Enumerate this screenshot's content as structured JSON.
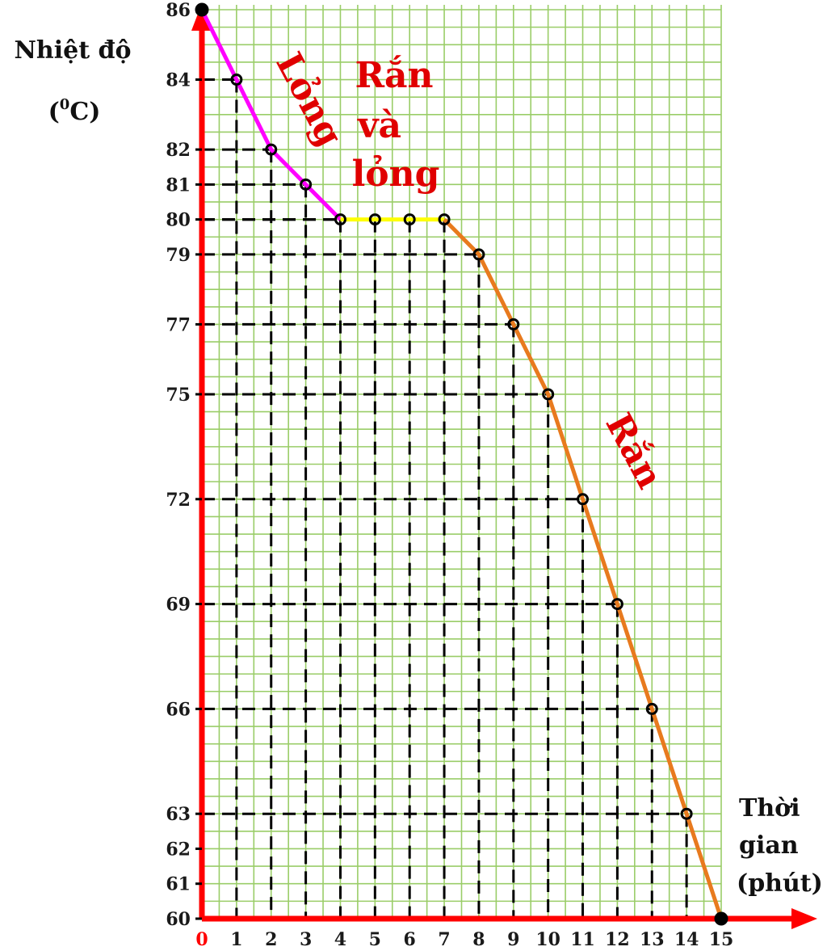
{
  "chart_data": {
    "type": "line",
    "title": "",
    "ylabel": "Nhiệt độ",
    "ylabel_unit_sup": "0",
    "ylabel_unit": "C",
    "xlabel_lines": [
      "Thời",
      "gian",
      "(phút)"
    ],
    "xlim": [
      0,
      15
    ],
    "ylim": [
      60,
      86
    ],
    "x_ticks": [
      0,
      1,
      2,
      3,
      4,
      5,
      6,
      7,
      8,
      9,
      10,
      11,
      12,
      13,
      14,
      15
    ],
    "x_tick_labels": [
      "0",
      "1",
      "2",
      "3",
      "4",
      "5",
      "6",
      "7",
      "8",
      "9",
      "10",
      "11",
      "12",
      "13",
      "14",
      "15"
    ],
    "y_ticks": [
      60,
      61,
      62,
      63,
      66,
      69,
      72,
      75,
      77,
      79,
      80,
      81,
      82,
      84,
      86
    ],
    "y_tick_labels": [
      "60",
      "61",
      "62",
      "63",
      "66",
      "69",
      "72",
      "75",
      "77",
      "79",
      "80",
      "81",
      "82",
      "84",
      "86"
    ],
    "points": [
      {
        "x": 0,
        "y": 86
      },
      {
        "x": 1,
        "y": 84
      },
      {
        "x": 2,
        "y": 82
      },
      {
        "x": 3,
        "y": 81
      },
      {
        "x": 4,
        "y": 80
      },
      {
        "x": 5,
        "y": 80
      },
      {
        "x": 6,
        "y": 80
      },
      {
        "x": 7,
        "y": 80
      },
      {
        "x": 8,
        "y": 79
      },
      {
        "x": 9,
        "y": 77
      },
      {
        "x": 10,
        "y": 75
      },
      {
        "x": 11,
        "y": 72
      },
      {
        "x": 12,
        "y": 69
      },
      {
        "x": 13,
        "y": 66
      },
      {
        "x": 14,
        "y": 63
      },
      {
        "x": 15,
        "y": 60
      }
    ],
    "series": [
      {
        "name": "Lỏng",
        "color": "#ff00ff",
        "x": [
          0,
          1,
          2,
          3,
          4
        ],
        "y": [
          86,
          84,
          82,
          81,
          80
        ]
      },
      {
        "name": "Rắn và lỏng",
        "color": "#ffff00",
        "x": [
          4,
          5,
          6,
          7
        ],
        "y": [
          80,
          80,
          80,
          80
        ]
      },
      {
        "name": "Rắn",
        "color": "#e87a1e",
        "x": [
          7,
          8,
          9,
          10,
          11,
          12,
          13,
          14,
          15
        ],
        "y": [
          80,
          79,
          77,
          75,
          72,
          69,
          66,
          63,
          60
        ]
      }
    ],
    "phase_labels": {
      "liquid": "Lỏng",
      "mixed_lines": [
        "Rắn",
        "và",
        "lỏng"
      ],
      "solid": "Rắn"
    },
    "annotation_color": "#e00000",
    "axis_color": "#ff0000",
    "grid_color": "#9acd68",
    "grid": true
  }
}
